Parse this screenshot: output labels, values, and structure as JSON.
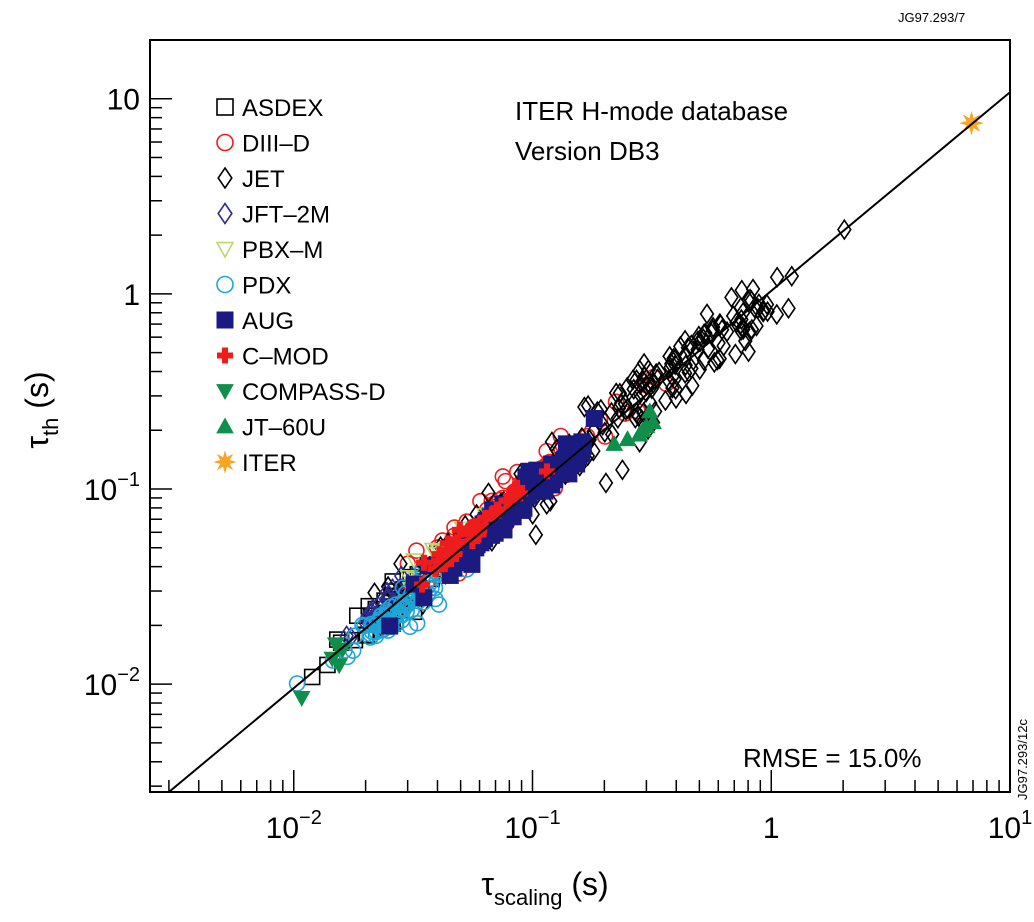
{
  "header": {
    "figure_id": "JG97.293/7",
    "side_id": "JG97.293/12c"
  },
  "chart_data": {
    "type": "scatter",
    "xscale": "log",
    "yscale": "log",
    "xlim": [
      0.0025,
      10
    ],
    "ylim": [
      0.0028,
      20
    ],
    "x_ticks": [
      {
        "value": 0.01,
        "base": "10",
        "exp": "−2"
      },
      {
        "value": 0.1,
        "base": "10",
        "exp": "−1"
      },
      {
        "value": 1,
        "base": "1",
        "exp": ""
      },
      {
        "value": 10,
        "base": "10",
        "exp": "1"
      }
    ],
    "y_ticks": [
      {
        "value": 0.01,
        "base": "10",
        "exp": "−2"
      },
      {
        "value": 0.1,
        "base": "10",
        "exp": "−1"
      },
      {
        "value": 1,
        "base": "1",
        "exp": ""
      },
      {
        "value": 10,
        "base": "10",
        "exp": ""
      }
    ],
    "xlabel": {
      "symbol": "τ",
      "sub": "scaling",
      "unit": " (s)"
    },
    "ylabel": {
      "symbol": "τ",
      "sub": "th",
      "unit": " (s)"
    },
    "annotations": {
      "line1": "ITER H-mode database",
      "line2": "Version DB3",
      "rmse": "RMSE = 15.0%"
    },
    "fit_line": {
      "x": [
        0.003,
        10
      ],
      "y": [
        0.0028,
        10.8
      ]
    },
    "grid": false,
    "legend_position": "top-left",
    "series": [
      {
        "name": "ASDEX",
        "marker": "square-open",
        "color": "#000000",
        "clusters": [
          {
            "x": 0.028,
            "y": 0.028,
            "sx": 0.14,
            "sy": 0.15,
            "n": 55
          }
        ]
      },
      {
        "name": "DIII–D",
        "marker": "circle-open",
        "color": "#ee1c1c",
        "clusters": [
          {
            "x": 0.09,
            "y": 0.1,
            "sx": 0.22,
            "sy": 0.18,
            "n": 95
          }
        ]
      },
      {
        "name": "JET",
        "marker": "diamond-open",
        "color": "#000000",
        "clusters": [
          {
            "x": 0.35,
            "y": 0.35,
            "sx": 0.28,
            "sy": 0.26,
            "n": 150
          },
          {
            "x": 0.05,
            "y": 0.05,
            "sx": 0.22,
            "sy": 0.2,
            "n": 45
          }
        ]
      },
      {
        "name": "JFT–2M",
        "marker": "diamond-open",
        "color": "#2b2b8f",
        "clusters": [
          {
            "x": 0.025,
            "y": 0.026,
            "sx": 0.1,
            "sy": 0.1,
            "n": 25
          }
        ]
      },
      {
        "name": "PBX–M",
        "marker": "triangle-down-open",
        "color": "#b8d86a",
        "clusters": [
          {
            "x": 0.04,
            "y": 0.045,
            "sx": 0.1,
            "sy": 0.1,
            "n": 22
          }
        ]
      },
      {
        "name": "PDX",
        "marker": "circle-open",
        "color": "#1fa5d6",
        "clusters": [
          {
            "x": 0.027,
            "y": 0.024,
            "sx": 0.12,
            "sy": 0.13,
            "n": 85
          }
        ]
      },
      {
        "name": "AUG",
        "marker": "square-filled",
        "color": "#1a1a80",
        "clusters": [
          {
            "x": 0.1,
            "y": 0.1,
            "sx": 0.14,
            "sy": 0.12,
            "n": 75
          },
          {
            "x": 0.05,
            "y": 0.045,
            "sx": 0.12,
            "sy": 0.12,
            "n": 20
          }
        ]
      },
      {
        "name": "C–MOD",
        "marker": "cross-filled",
        "color": "#ee1c1c",
        "clusters": [
          {
            "x": 0.055,
            "y": 0.06,
            "sx": 0.1,
            "sy": 0.1,
            "n": 40
          }
        ]
      },
      {
        "name": "COMPASS-D",
        "marker": "triangle-down-filled",
        "color": "#0f8f4a",
        "points": [
          [
            0.0108,
            0.0085
          ],
          [
            0.0145,
            0.0135
          ],
          [
            0.015,
            0.016
          ],
          [
            0.016,
            0.015
          ],
          [
            0.0155,
            0.0125
          ]
        ]
      },
      {
        "name": "JT–60U",
        "marker": "triangle-up-filled",
        "color": "#0f8f4a",
        "points": [
          [
            0.22,
            0.17
          ],
          [
            0.25,
            0.18
          ],
          [
            0.28,
            0.19
          ],
          [
            0.3,
            0.21
          ],
          [
            0.32,
            0.22
          ],
          [
            0.31,
            0.25
          ],
          [
            0.29,
            0.2
          ]
        ]
      },
      {
        "name": "ITER",
        "marker": "star-filled",
        "color": "#f5a623",
        "points": [
          [
            6.9,
            7.5
          ]
        ]
      }
    ]
  }
}
